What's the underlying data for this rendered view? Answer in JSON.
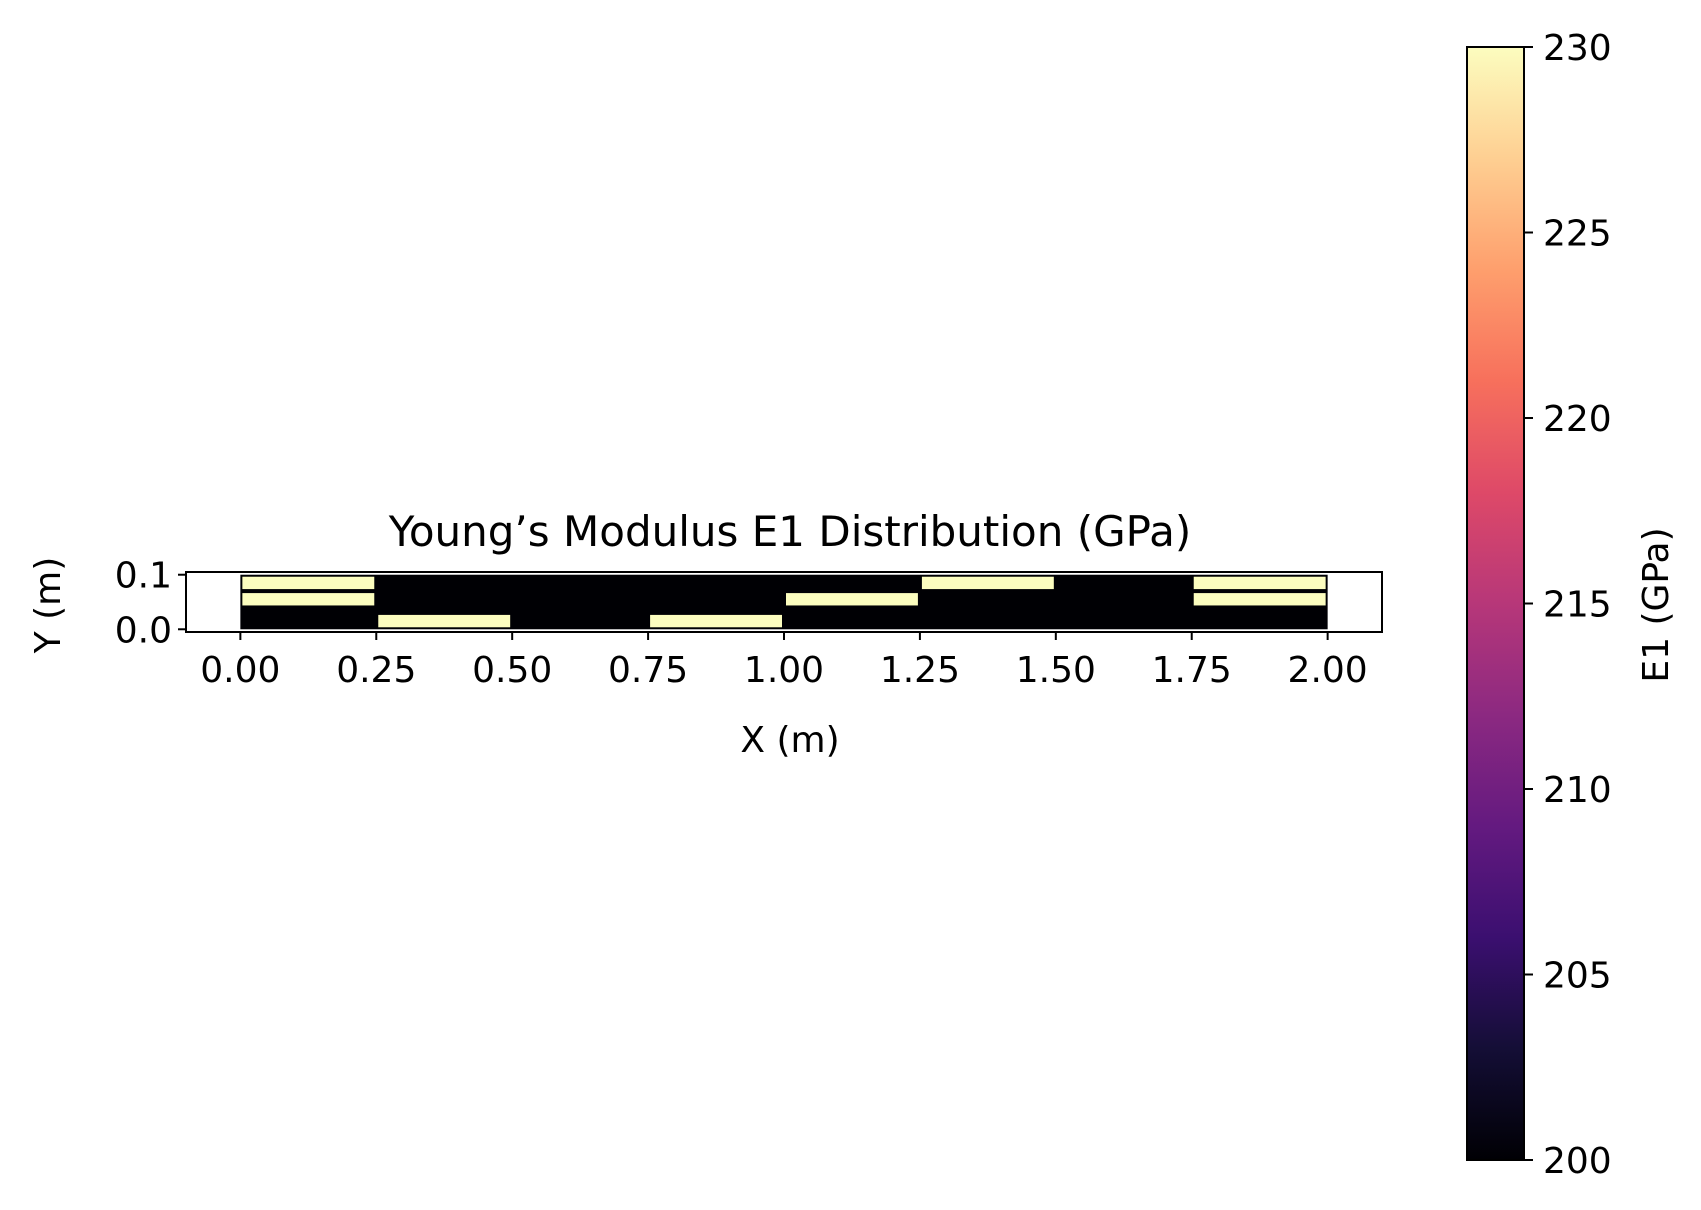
{
  "chart_data": {
    "type": "heatmap",
    "title": "Young’s Modulus E1 Distribution (GPa)",
    "xlabel": "X (m)",
    "ylabel": "Y (m)",
    "xlim": [
      -0.1,
      2.1
    ],
    "ylim": [
      -0.005,
      0.105
    ],
    "xticks": [
      "0.00",
      "0.25",
      "0.50",
      "0.75",
      "1.00",
      "1.25",
      "1.50",
      "1.75",
      "2.00"
    ],
    "yticks": [
      "0.0",
      "0.1"
    ],
    "grid": false,
    "colormap": "magma",
    "background_value": 200,
    "domain": {
      "x": [
        0,
        2
      ],
      "y": [
        0,
        0.1
      ]
    },
    "high_value_regions": [
      {
        "x": [
          0.0,
          0.25
        ],
        "y": [
          0.07,
          0.1
        ],
        "value": 230
      },
      {
        "x": [
          0.0,
          0.25
        ],
        "y": [
          0.04,
          0.07
        ],
        "value": 230
      },
      {
        "x": [
          0.25,
          0.5
        ],
        "y": [
          0.0,
          0.03
        ],
        "value": 230
      },
      {
        "x": [
          0.75,
          1.0
        ],
        "y": [
          0.0,
          0.03
        ],
        "value": 230
      },
      {
        "x": [
          1.0,
          1.25
        ],
        "y": [
          0.04,
          0.07
        ],
        "value": 230
      },
      {
        "x": [
          1.25,
          1.5
        ],
        "y": [
          0.07,
          0.1
        ],
        "value": 230
      },
      {
        "x": [
          1.75,
          2.0
        ],
        "y": [
          0.07,
          0.1
        ],
        "value": 230
      },
      {
        "x": [
          1.75,
          2.0
        ],
        "y": [
          0.04,
          0.07
        ],
        "value": 230
      }
    ],
    "colorbar": {
      "label": "E1 (GPa)",
      "range": [
        200,
        230
      ],
      "ticks": [
        "200",
        "205",
        "210",
        "215",
        "220",
        "225",
        "230"
      ]
    }
  }
}
